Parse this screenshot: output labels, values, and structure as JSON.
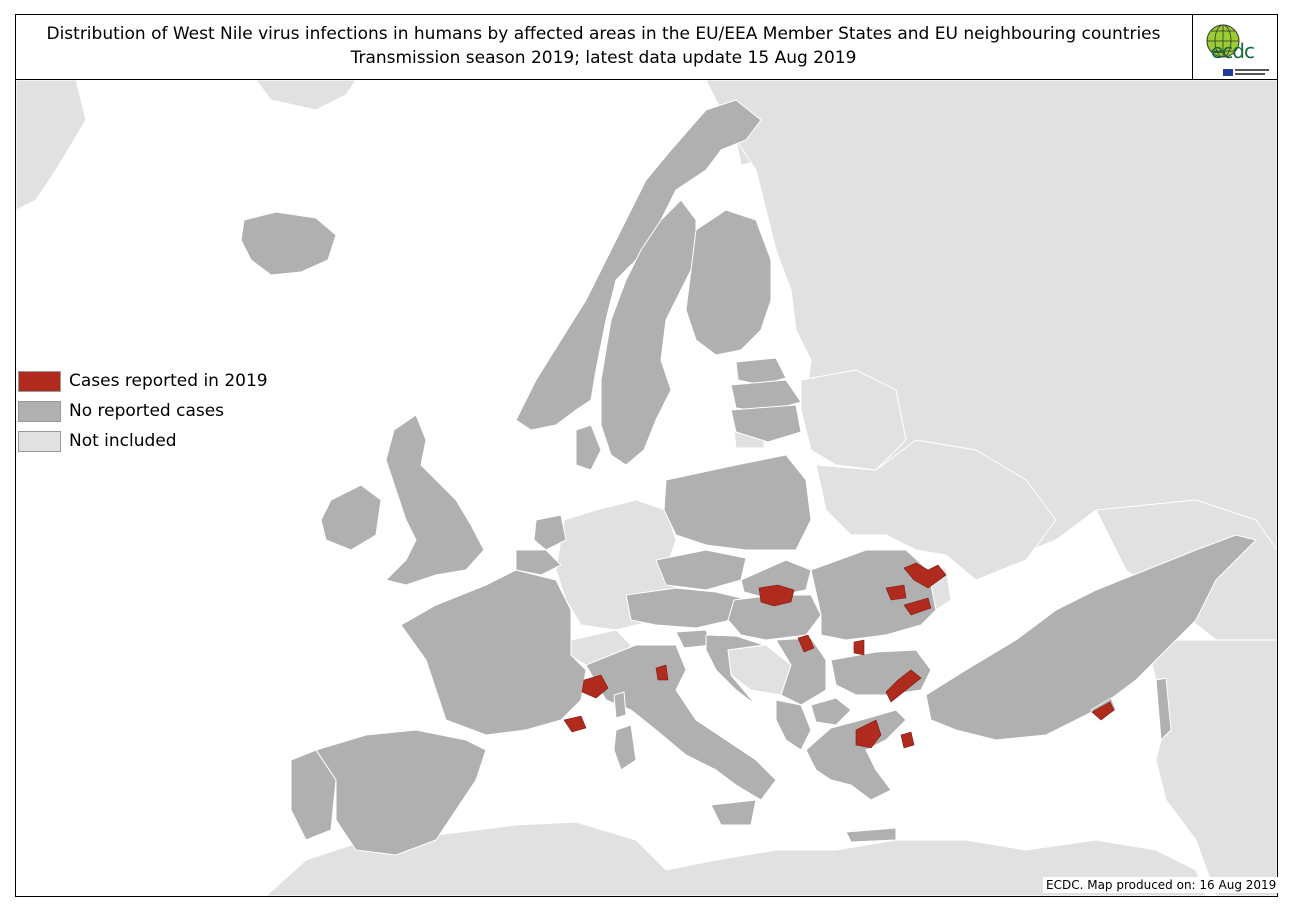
{
  "title": {
    "line1": "Distribution of West Nile virus infections in humans by affected areas in the EU/EEA Member States and EU neighbouring countries",
    "line2": "Transmission season 2019; latest data update 15 Aug 2019"
  },
  "logo": {
    "text": "ecdc",
    "icon": "ecdc-globe-logo"
  },
  "legend": {
    "items": [
      {
        "label": "Cases reported in 2019",
        "color": "#b02a1d"
      },
      {
        "label": "No reported cases",
        "color": "#b0b0b0"
      },
      {
        "label": "Not included",
        "color": "#e1e1e1"
      }
    ]
  },
  "credit": "ECDC. Map produced on: 16 Aug 2019",
  "colors": {
    "sea": "#ffffff",
    "no_cases": "#b0b0b0",
    "not_included": "#e1e1e1",
    "cases": "#b02a1d",
    "border": "#ffffff"
  }
}
